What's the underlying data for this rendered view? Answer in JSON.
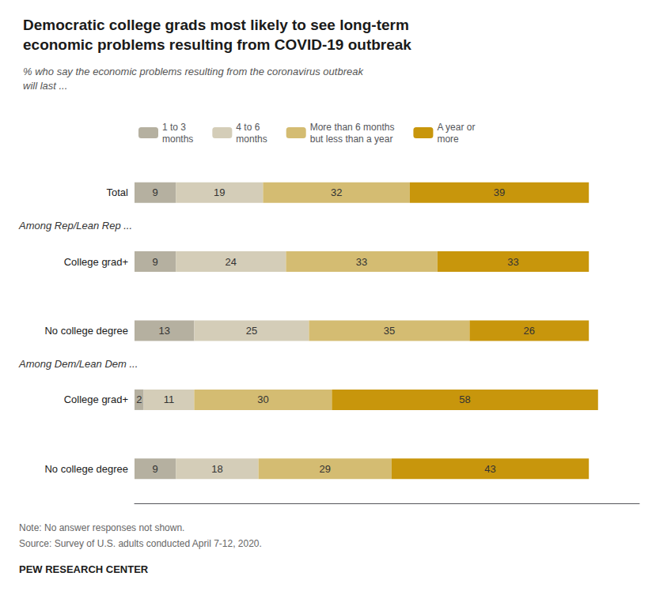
{
  "chart_data": {
    "type": "bar",
    "orientation": "horizontal",
    "stacked": true,
    "data_labels": true,
    "tick_labels": false,
    "grid": false,
    "legend": "top",
    "title": "Democratic college grads most likely to see long-term\neconomic problems resulting from COVID-19 outbreak",
    "subtitle": "% who say the economic problems resulting from the coronavirus outbreak\nwill last ...",
    "categories": [
      "Total",
      "College grad+",
      "No college degree",
      "College grad+",
      "No college degree"
    ],
    "group_labels": [
      "Among Rep/Lean Rep ...",
      "Among Dem/Lean Dem ..."
    ],
    "series": [
      {
        "name": "1 to 3\nmonths",
        "color": "#b5b0a0",
        "values": [
          9,
          9,
          13,
          2,
          9
        ]
      },
      {
        "name": "4 to 6\nmonths",
        "color": "#d4cdb8",
        "values": [
          19,
          24,
          25,
          11,
          18
        ]
      },
      {
        "name": "More than 6 months\nbut less than a year",
        "color": "#d4bc72",
        "values": [
          32,
          33,
          35,
          30,
          29
        ]
      },
      {
        "name": "A year or\nmore",
        "color": "#c8960c",
        "values": [
          39,
          33,
          26,
          58,
          43
        ]
      }
    ],
    "xlim": [
      0,
      110
    ],
    "notes": [
      "Note: No answer responses not shown.",
      "Source: Survey of U.S. adults conducted April 7-12, 2020."
    ],
    "source": "PEW RESEARCH CENTER"
  }
}
